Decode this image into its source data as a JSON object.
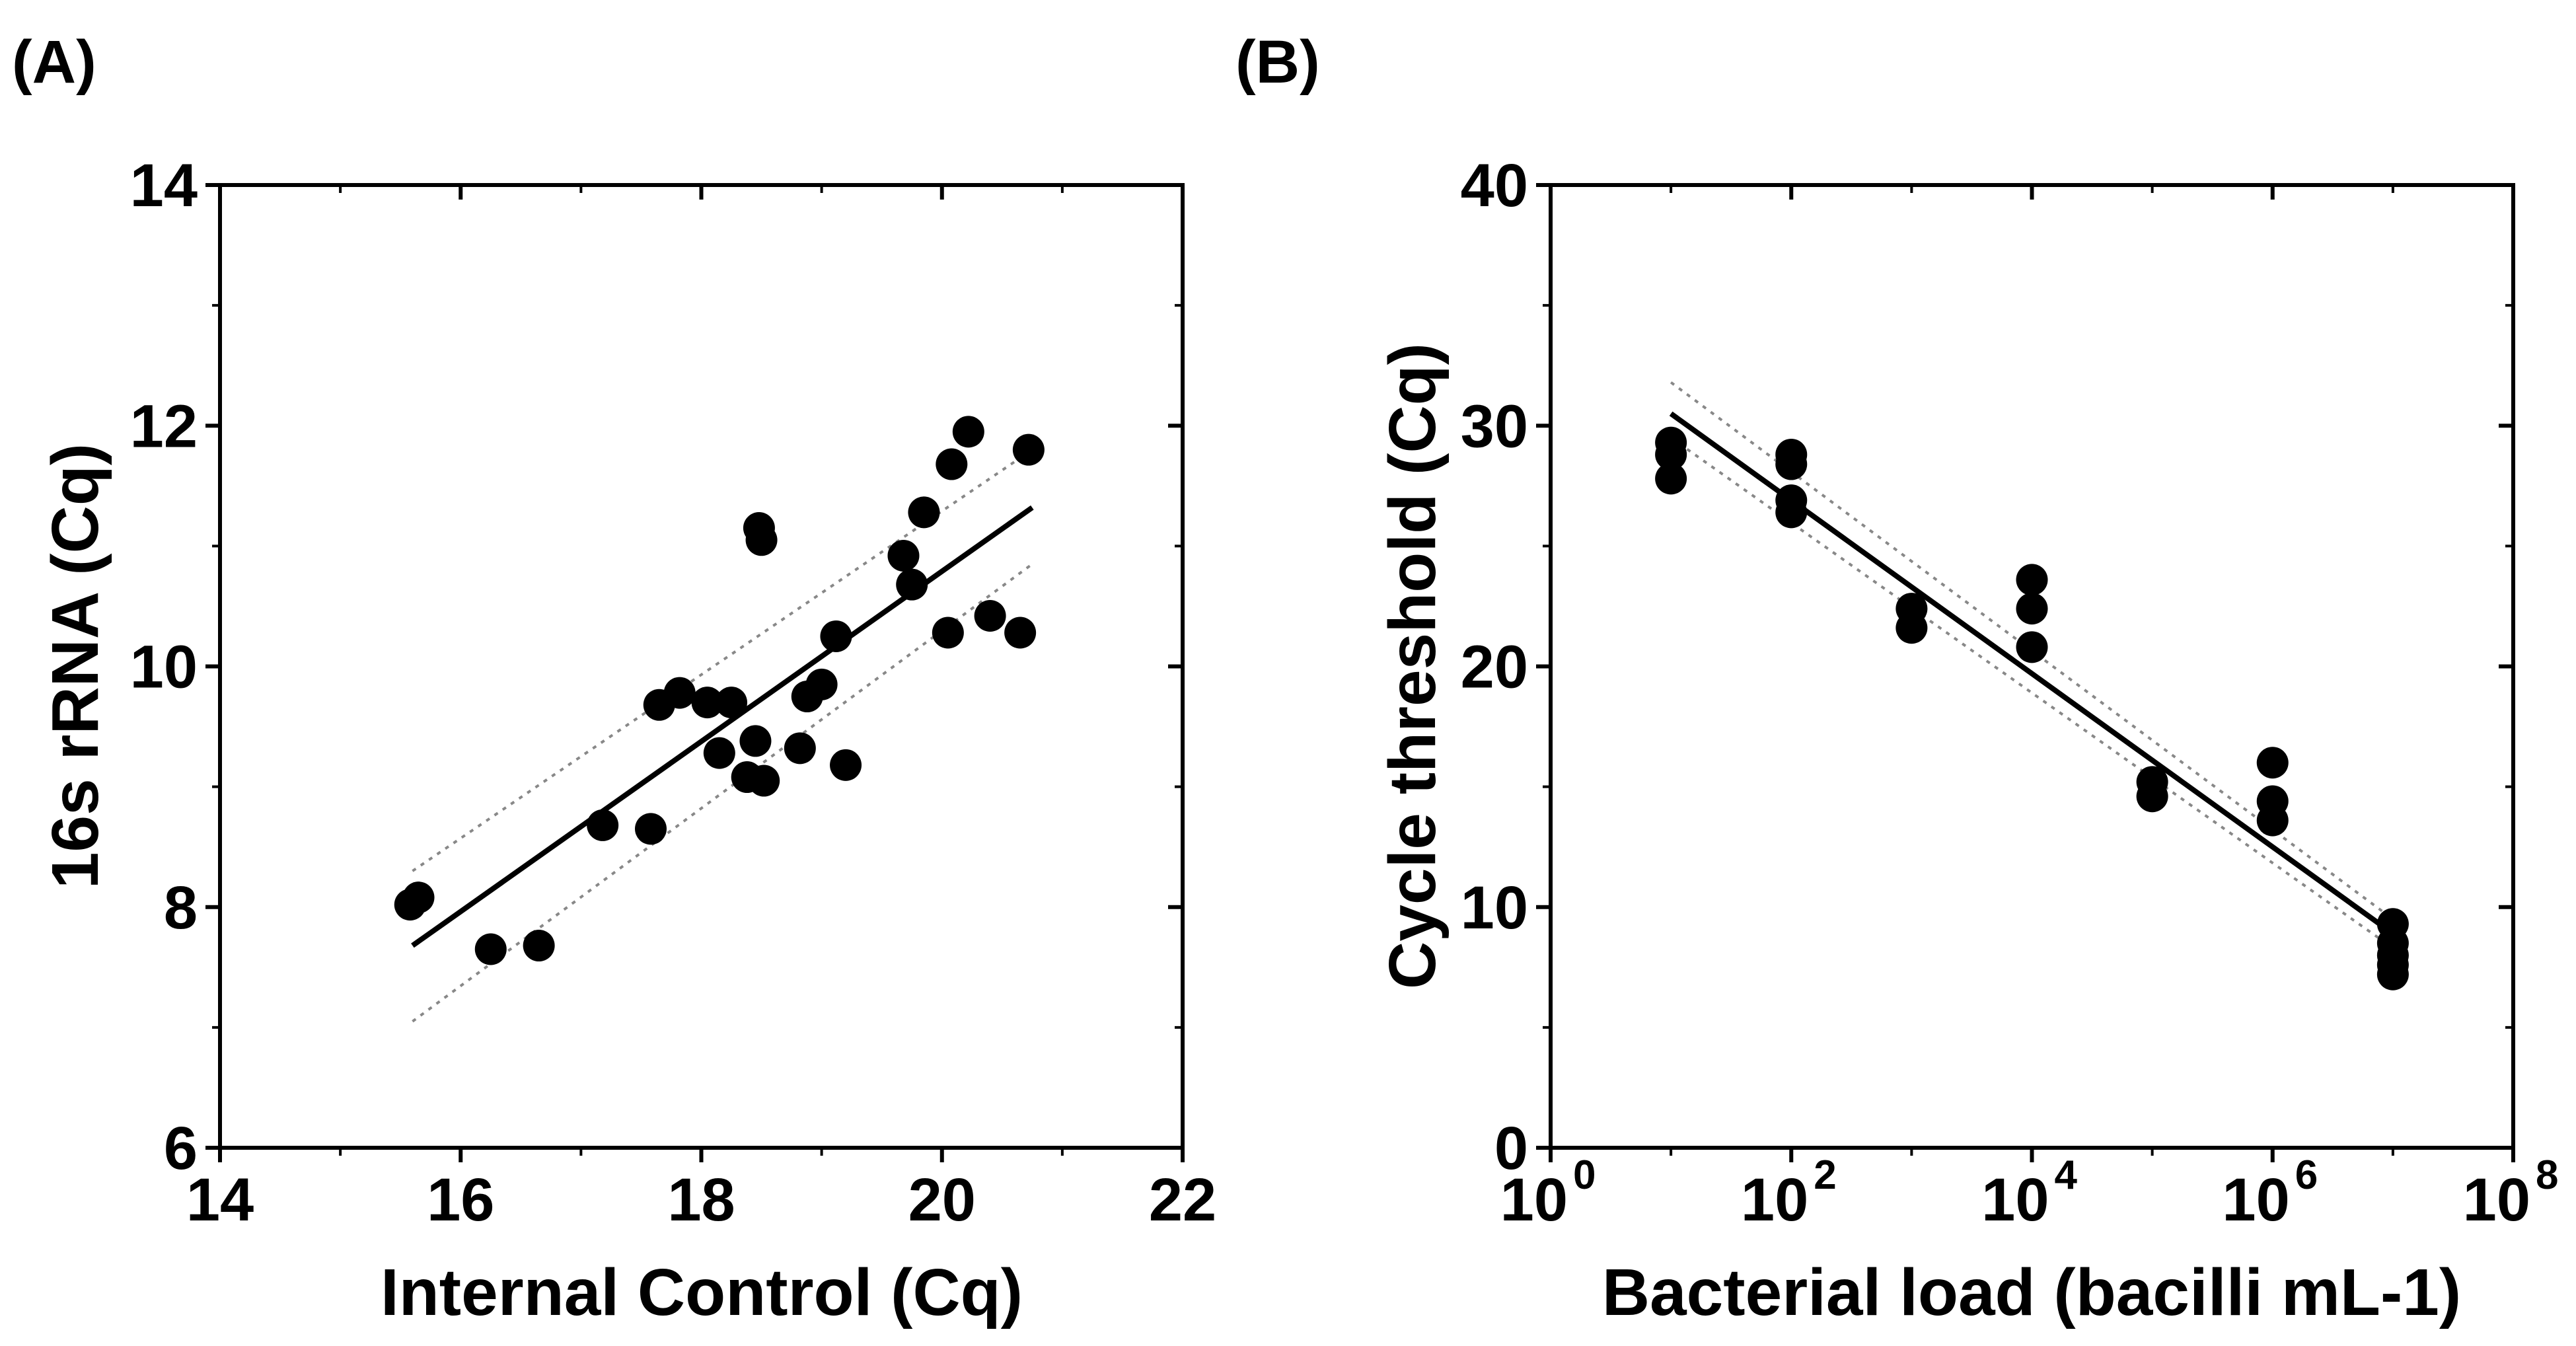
{
  "chart_data": [
    {
      "panel_label": "(A)",
      "type": "scatter",
      "xlabel": "Internal Control (Cq)",
      "ylabel": "16s rRNA (Cq)",
      "xlim": [
        14,
        22
      ],
      "ylim": [
        6,
        14
      ],
      "xticks": [
        "14",
        "16",
        "18",
        "20",
        "22"
      ],
      "yticks": [
        "6",
        "8",
        "10",
        "12",
        "14"
      ],
      "points": [
        [
          15.58,
          8.02
        ],
        [
          15.65,
          8.08
        ],
        [
          16.25,
          7.65
        ],
        [
          16.65,
          7.68
        ],
        [
          17.18,
          8.68
        ],
        [
          17.58,
          8.65
        ],
        [
          17.65,
          9.68
        ],
        [
          17.82,
          9.78
        ],
        [
          18.05,
          9.7
        ],
        [
          18.15,
          9.28
        ],
        [
          18.25,
          9.7
        ],
        [
          18.38,
          9.08
        ],
        [
          18.45,
          9.38
        ],
        [
          18.48,
          11.15
        ],
        [
          18.5,
          11.05
        ],
        [
          18.52,
          9.05
        ],
        [
          18.82,
          9.32
        ],
        [
          18.88,
          9.75
        ],
        [
          19.0,
          9.85
        ],
        [
          19.12,
          10.25
        ],
        [
          19.2,
          9.18
        ],
        [
          19.68,
          10.92
        ],
        [
          19.75,
          10.68
        ],
        [
          19.85,
          11.28
        ],
        [
          20.05,
          10.28
        ],
        [
          20.08,
          11.68
        ],
        [
          20.22,
          11.95
        ],
        [
          20.4,
          10.42
        ],
        [
          20.65,
          10.28
        ],
        [
          20.72,
          11.8
        ]
      ],
      "fit_line": [
        [
          15.6,
          7.68
        ],
        [
          20.75,
          11.32
        ]
      ],
      "ci_upper": [
        [
          15.6,
          8.3
        ],
        [
          20.75,
          11.8
        ]
      ],
      "ci_lower": [
        [
          15.6,
          7.05
        ],
        [
          20.75,
          10.85
        ]
      ]
    },
    {
      "panel_label": "(B)",
      "type": "scatter",
      "xscale": "log10",
      "xlabel": "Bacterial load (bacilli mL-1)",
      "ylabel": "Cycle threshold (Cq)",
      "xlim_log10": [
        0,
        8
      ],
      "ylim": [
        0,
        40
      ],
      "xticks": [
        {
          "base": "10",
          "exp": "0"
        },
        {
          "base": "10",
          "exp": "2"
        },
        {
          "base": "10",
          "exp": "4"
        },
        {
          "base": "10",
          "exp": "6"
        },
        {
          "base": "10",
          "exp": "8"
        }
      ],
      "yticks": [
        "0",
        "10",
        "20",
        "30",
        "40"
      ],
      "points_log10x": [
        [
          1,
          27.8
        ],
        [
          1,
          28.8
        ],
        [
          1,
          29.3
        ],
        [
          2,
          26.4
        ],
        [
          2,
          26.9
        ],
        [
          2,
          28.4
        ],
        [
          2,
          28.8
        ],
        [
          3,
          21.6
        ],
        [
          3,
          22.4
        ],
        [
          4,
          20.8
        ],
        [
          4,
          22.4
        ],
        [
          4,
          23.6
        ],
        [
          5,
          14.6
        ],
        [
          5,
          15.2
        ],
        [
          6,
          13.6
        ],
        [
          6,
          14.4
        ],
        [
          6,
          16.0
        ],
        [
          7,
          7.2
        ],
        [
          7,
          7.6
        ],
        [
          7,
          8.0
        ],
        [
          7,
          8.5
        ],
        [
          7,
          9.3
        ]
      ],
      "fit_line_log10x": [
        [
          1,
          30.5
        ],
        [
          7,
          8.9
        ]
      ],
      "ci_upper_log10x": [
        [
          1,
          31.8
        ],
        [
          7,
          9.5
        ]
      ],
      "ci_lower_log10x": [
        [
          1,
          29.5
        ],
        [
          7,
          8.3
        ]
      ]
    }
  ]
}
